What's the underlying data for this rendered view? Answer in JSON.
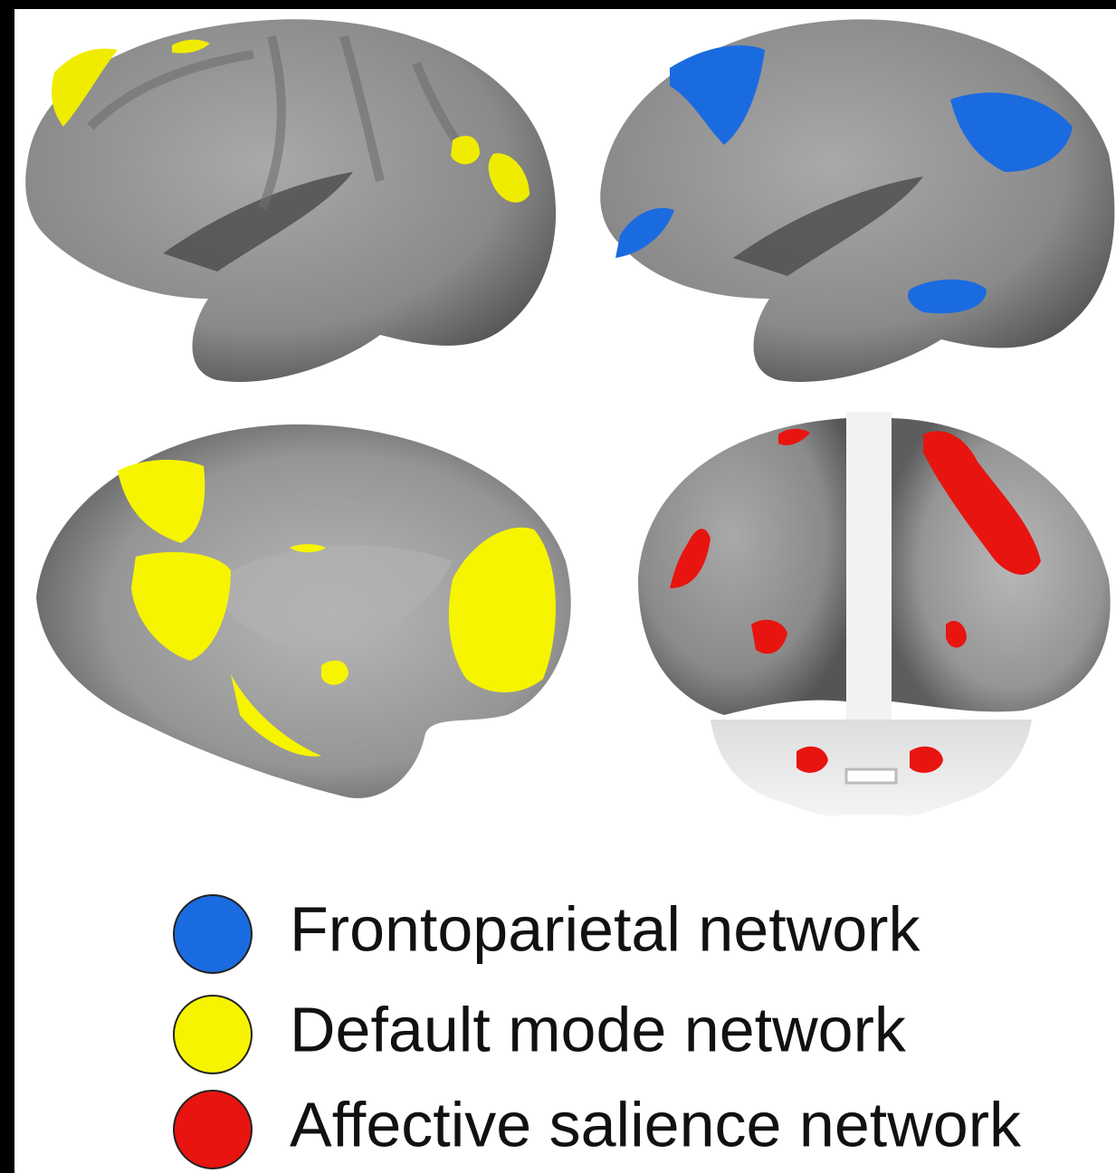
{
  "legend": {
    "items": [
      {
        "label": "Frontoparietal network",
        "color": "#1b6be0"
      },
      {
        "label": "Default mode network",
        "color": "#f7f400"
      },
      {
        "label": "Affective salience network",
        "color": "#e8140f"
      }
    ]
  }
}
